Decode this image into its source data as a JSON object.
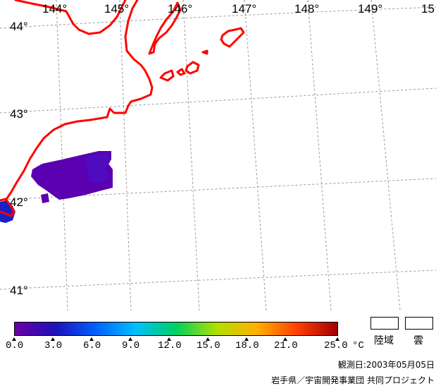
{
  "map": {
    "lon_labels": [
      "144°",
      "145°",
      "146°",
      "147°",
      "148°",
      "149°",
      "15"
    ],
    "lat_labels": [
      "44°",
      "43°",
      "42°",
      "41°"
    ],
    "coast_color": "#ff0000",
    "grid_color": "#999999"
  },
  "legend": {
    "tick_labels": [
      "0.0",
      "3.0",
      "6.0",
      "9.0",
      "12.0",
      "15.0",
      "18.0",
      "21.0",
      "25.0"
    ],
    "unit": "°C",
    "land_label": "陸域",
    "cloud_label": "雲",
    "colors": [
      "#6a00a8",
      "#1e10b8",
      "#0060ff",
      "#00c0ff",
      "#00d060",
      "#b0e000",
      "#ffb000",
      "#ff4000",
      "#a00000"
    ]
  },
  "footer": {
    "obs_date": "観測日:2003年05月05日",
    "credit": "岩手県／宇宙開発事業団 共同プロジェクト"
  }
}
